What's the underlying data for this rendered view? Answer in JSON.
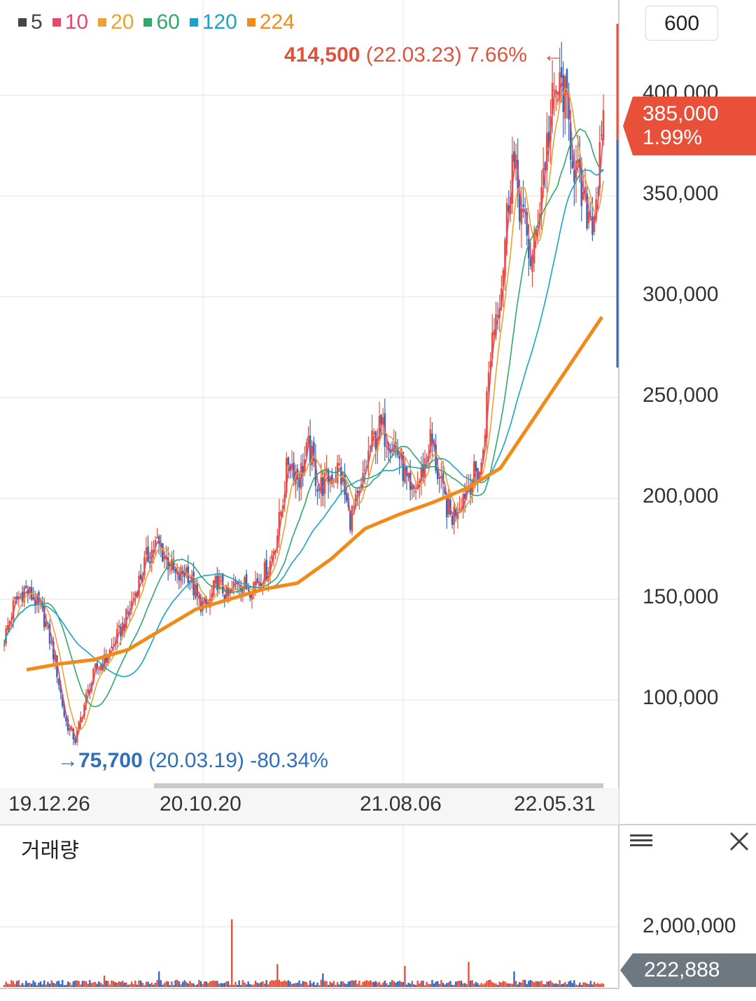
{
  "legend": [
    {
      "label": "5",
      "color": "#444444"
    },
    {
      "label": "10",
      "color": "#e8466a"
    },
    {
      "label": "20",
      "color": "#f0a030"
    },
    {
      "label": "60",
      "color": "#2fa86a"
    },
    {
      "label": "120",
      "color": "#1aa3c8"
    },
    {
      "label": "224",
      "color": "#f28a1a"
    }
  ],
  "period_button": "600",
  "max_annotation": {
    "value": "414,500",
    "date": "(22.03.23)",
    "pct": "7.66%",
    "arrow": "←"
  },
  "min_annotation": {
    "arrow": "→",
    "value": "75,700",
    "date": "(20.03.19)",
    "pct": "-80.34%"
  },
  "current_price": {
    "value": "385,000",
    "pct": "1.99%"
  },
  "volume_panel": {
    "title": "거래량",
    "tick": "2,000,000",
    "current": "222,888"
  },
  "colors": {
    "up": "#e8503a",
    "down": "#3a66b8",
    "ma224": "#f28a1a",
    "grid": "#ececec",
    "axis": "#cccccc"
  },
  "chart_data": {
    "type": "candlestick",
    "title": "",
    "x_ticks": [
      "19.12.26",
      "20.10.20",
      "21.08.06",
      "22.05.31"
    ],
    "y_ticks": [
      "100,000",
      "150,000",
      "200,000",
      "250,000",
      "300,000",
      "350,000",
      "400,000"
    ],
    "y_tick_values": [
      100000,
      150000,
      200000,
      250000,
      300000,
      350000,
      400000
    ],
    "ylim": [
      60000,
      440000
    ],
    "x_range": [
      "2019-10",
      "2022-09"
    ],
    "close_series": [
      130000,
      148000,
      155000,
      150000,
      140000,
      120000,
      90000,
      80000,
      100000,
      115000,
      120000,
      130000,
      140000,
      155000,
      170000,
      178000,
      170000,
      160000,
      165000,
      150000,
      145000,
      160000,
      150000,
      160000,
      155000,
      160000,
      165000,
      185000,
      220000,
      210000,
      225000,
      205000,
      210000,
      215000,
      190000,
      200000,
      225000,
      235000,
      230000,
      220000,
      200000,
      210000,
      230000,
      205000,
      190000,
      200000,
      210000,
      215000,
      280000,
      310000,
      370000,
      340000,
      315000,
      360000,
      395000,
      405000,
      370000,
      345000,
      340000,
      380000
    ],
    "ma224_series": [
      115000,
      118000,
      120000,
      125000,
      135000,
      145000,
      150000,
      155000,
      158000,
      170000,
      185000,
      192000,
      198000,
      205000,
      215000,
      240000,
      265000,
      290000
    ],
    "max": {
      "price": 414500,
      "date": "22.03.23",
      "pct": 7.66
    },
    "min": {
      "price": 75700,
      "date": "20.03.19",
      "pct": -80.34
    },
    "last_price": 385000,
    "last_change_pct": 1.99,
    "volume": {
      "ytick": 2000000,
      "last": 222888,
      "spikes": [
        380000,
        520000,
        2250000,
        760000,
        450000,
        700000,
        830000,
        520000
      ]
    }
  }
}
